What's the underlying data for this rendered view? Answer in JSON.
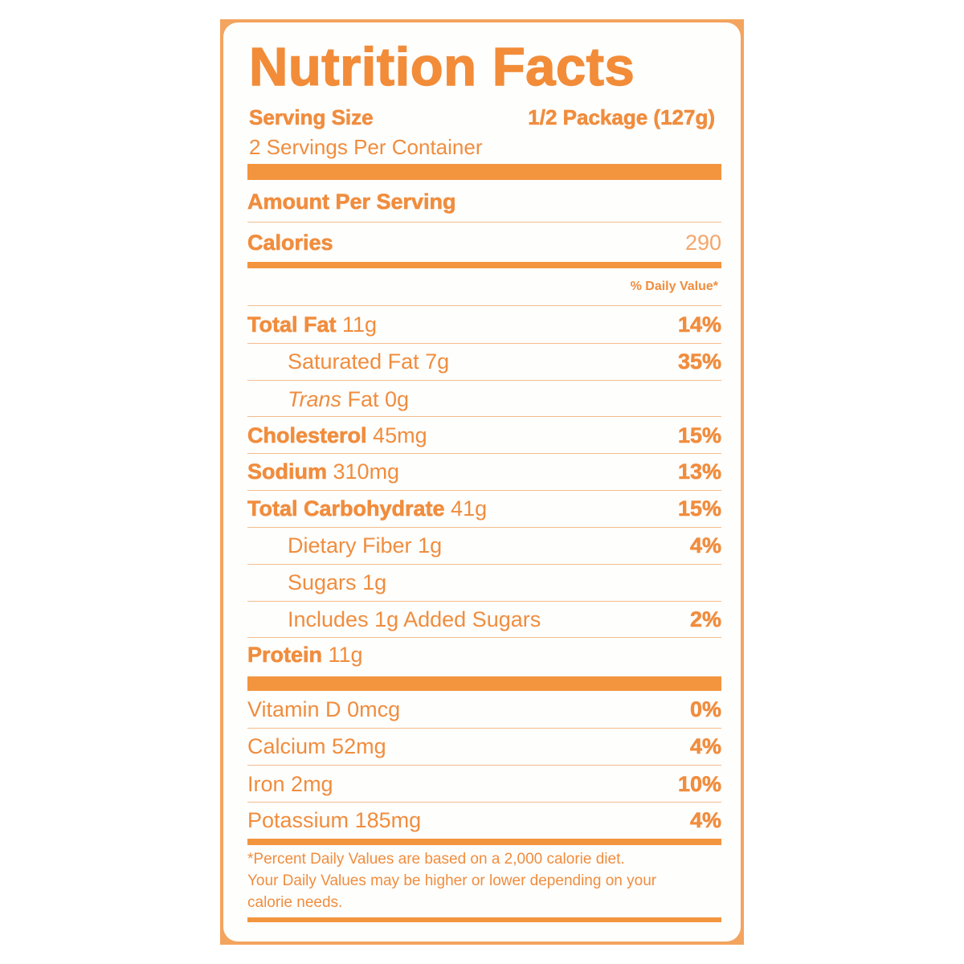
{
  "title": "Nutrition Facts",
  "serving_size_label": "Serving Size",
  "serving_size_value": "1/2 Package (127g)",
  "servings_per_container": "2 Servings Per Container",
  "amount_per_serving": "Amount Per Serving",
  "calories_label": "Calories",
  "calories_value": "290",
  "daily_value_header": "% Daily Value*",
  "nutrients": [
    {
      "name": "Total Fat",
      "amount": "11g",
      "pct": "14%"
    },
    {
      "name": "Saturated Fat",
      "amount": "7g",
      "pct": "35%"
    },
    {
      "name": "Trans",
      "amount": "Fat 0g",
      "pct": ""
    },
    {
      "name": "Cholesterol",
      "amount": "45mg",
      "pct": "15%"
    },
    {
      "name": "Sodium",
      "amount": "310mg",
      "pct": "13%"
    },
    {
      "name": "Total Carbohydrate",
      "amount": "41g",
      "pct": "15%"
    },
    {
      "name": "Dietary Fiber",
      "amount": "1g",
      "pct": "4%"
    },
    {
      "name": "Sugars",
      "amount": "1g",
      "pct": ""
    },
    {
      "name": "Includes 1g Added Sugars",
      "amount": "",
      "pct": "2%"
    },
    {
      "name": "Protein",
      "amount": "11g",
      "pct": ""
    }
  ],
  "vitamins": [
    {
      "name": "Vitamin D",
      "amount": "0mcg",
      "pct": "0%"
    },
    {
      "name": "Calcium",
      "amount": "52mg",
      "pct": "4%"
    },
    {
      "name": "Iron",
      "amount": "2mg",
      "pct": "10%"
    },
    {
      "name": "Potassium",
      "amount": "185mg",
      "pct": "4%"
    }
  ],
  "footnote_lines": [
    "*Percent Daily Values are based on a 2,000 calorie diet.",
    "Your Daily Values may be higher or lower depending on your",
    "calorie needs."
  ],
  "colors": {
    "label_orange": "#f08d3e",
    "border_orange": "#f3a45e",
    "background": "#fefefd"
  }
}
